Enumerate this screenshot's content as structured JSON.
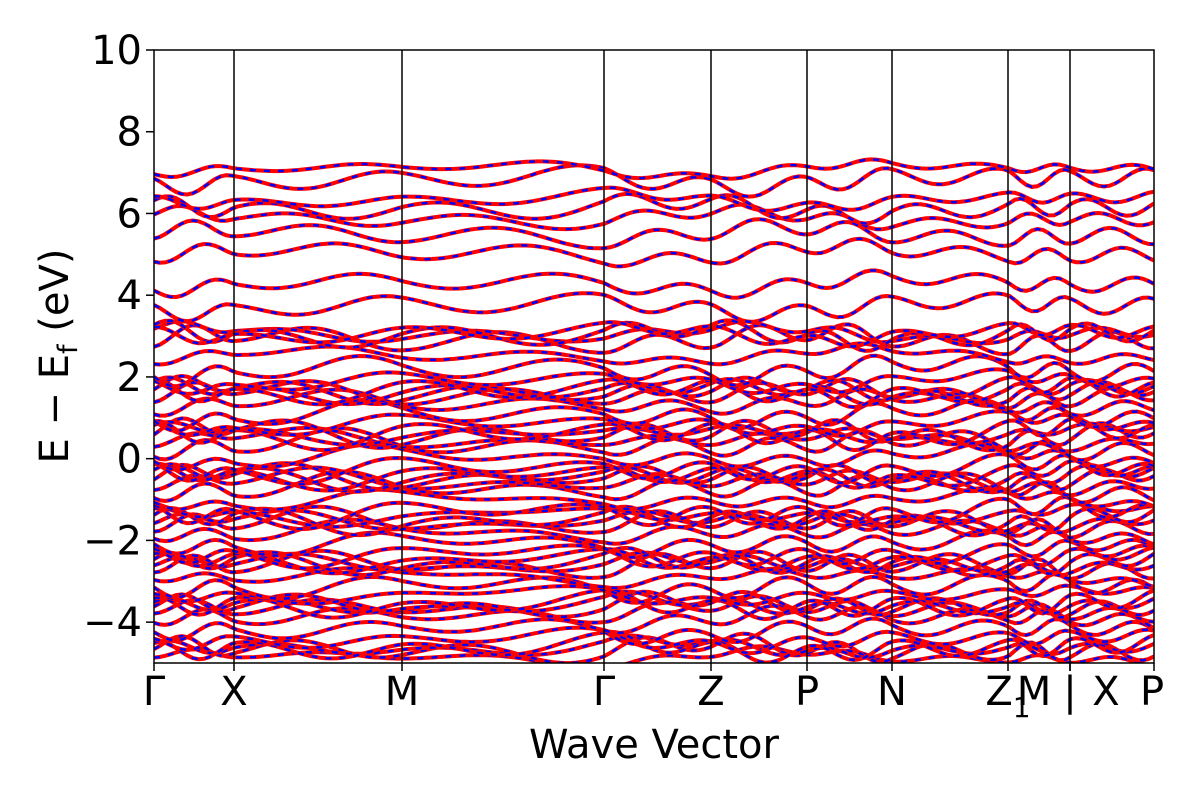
{
  "chart_data": {
    "type": "line",
    "title": "",
    "xlabel": "Wave Vector",
    "ylabel_main": "E − E",
    "ylabel_sub": "f",
    "ylabel_tail": " (eV)",
    "ylim": [
      -5,
      10
    ],
    "yticks": [
      -4,
      -2,
      0,
      2,
      4,
      6,
      8,
      10
    ],
    "ytick_labels": [
      "−4",
      "−2",
      "0",
      "2",
      "4",
      "6",
      "8",
      "10"
    ],
    "kpath": {
      "labels": [
        "Γ",
        "X",
        "M",
        "Γ",
        "Z",
        "P",
        "N",
        "Z",
        "M",
        "X",
        "P"
      ],
      "subscripts": [
        "",
        "",
        "",
        "",
        "",
        "",
        "",
        "1",
        "",
        "",
        ""
      ],
      "positions": [
        0.0,
        0.08,
        0.248,
        0.45,
        0.557,
        0.653,
        0.738,
        0.854,
        0.916,
        0.916,
        1.0
      ],
      "vertical_lines": [
        0.08,
        0.248,
        0.45,
        0.557,
        0.653,
        0.738,
        0.854,
        0.916
      ],
      "break_marker": "|"
    },
    "grid": false,
    "legend": "none",
    "series_style": [
      {
        "color": "#ff0000",
        "style": "solid"
      },
      {
        "color": "#0000ff",
        "style": "dashed"
      }
    ],
    "bands_at_Gamma": [
      -4.95,
      -4.8,
      -4.6,
      -4.45,
      -4.3,
      -4.15,
      -4.0,
      -3.85,
      -3.7,
      -3.55,
      -3.4,
      -3.25,
      -3.1,
      -2.95,
      -2.8,
      -2.65,
      -2.5,
      -2.35,
      -2.2,
      -2.05,
      -1.9,
      -1.75,
      -1.6,
      -1.45,
      -1.3,
      -1.15,
      -1.0,
      -0.85,
      -0.7,
      -0.55,
      -0.4,
      -0.25,
      -0.1,
      0.05,
      0.2,
      0.35,
      0.5,
      0.65,
      0.8,
      0.95,
      1.1,
      1.25,
      1.4,
      1.55,
      1.7,
      1.85,
      2.0,
      2.2,
      2.45,
      2.7,
      3.0,
      3.1,
      3.2,
      3.9,
      4.3,
      4.9,
      5.3,
      5.8,
      6.2,
      6.45,
      7.0,
      7.1
    ]
  }
}
